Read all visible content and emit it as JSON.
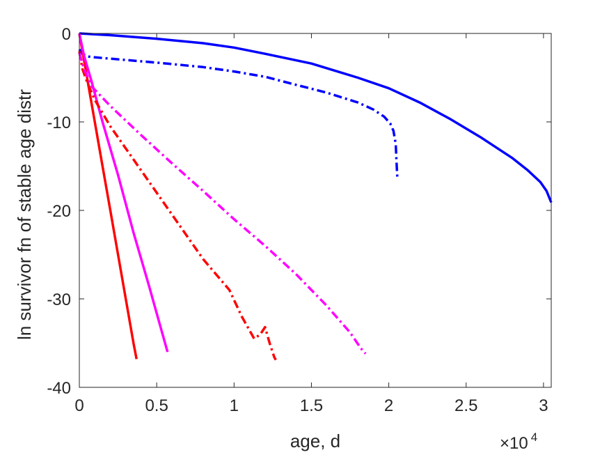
{
  "chart_data": {
    "type": "line",
    "title": "",
    "xlabel": "age, d",
    "ylabel": "ln survivor fn of stable age distr",
    "xlim": [
      0,
      30500
    ],
    "ylim": [
      -40,
      0
    ],
    "x_ticks": [
      0,
      5000,
      10000,
      15000,
      20000,
      25000,
      30000
    ],
    "x_tick_labels": [
      "0",
      "0.5",
      "1",
      "1.5",
      "2",
      "2.5",
      "3"
    ],
    "x_exponent_base": "×10",
    "x_exponent_power": "4",
    "y_ticks": [
      0,
      -10,
      -20,
      -30,
      -40
    ],
    "y_tick_labels": [
      "0",
      "-10",
      "-20",
      "-30",
      "-40"
    ],
    "grid": false,
    "box": true,
    "series": [
      {
        "color": "#0000ff",
        "style": "solid",
        "x": [
          0,
          2000,
          5000,
          8000,
          10000,
          12000,
          15000,
          18000,
          20000,
          22000,
          24000,
          26000,
          28000,
          29000,
          29800,
          30200,
          30500
        ],
        "y": [
          0,
          -0.2,
          -0.6,
          -1.1,
          -1.6,
          -2.3,
          -3.4,
          -5.0,
          -6.2,
          -7.8,
          -9.7,
          -11.8,
          -14.1,
          -15.5,
          -16.8,
          -17.8,
          -19.1
        ]
      },
      {
        "color": "#0000ff",
        "style": "dashdot",
        "x": [
          0,
          200,
          500,
          1000,
          3000,
          5000,
          8000,
          10000,
          12000,
          14000,
          16000,
          18000,
          19000,
          19700,
          20100,
          20300,
          20450,
          20500,
          20550
        ],
        "y": [
          -1.8,
          -2.3,
          -2.6,
          -2.7,
          -3.0,
          -3.3,
          -3.8,
          -4.3,
          -4.9,
          -5.8,
          -6.7,
          -7.8,
          -8.6,
          -9.4,
          -10.2,
          -11.0,
          -12.5,
          -14.5,
          -16.2
        ]
      },
      {
        "color": "#ff0000",
        "style": "solid",
        "x": [
          0,
          300,
          600,
          1000,
          1500,
          2000,
          2500,
          3000,
          3500,
          3700
        ],
        "y": [
          0,
          -3.0,
          -6.0,
          -10.0,
          -15.0,
          -20.0,
          -25.0,
          -30.0,
          -35.0,
          -36.8
        ]
      },
      {
        "color": "#ff00ff",
        "style": "solid",
        "x": [
          0,
          300,
          800,
          1500,
          2500,
          3500,
          4500,
          5700
        ],
        "y": [
          0,
          -2.5,
          -5.5,
          -10.0,
          -16.0,
          -22.5,
          -28.5,
          -36.0
        ]
      },
      {
        "color": "#ff0000",
        "style": "dashdot",
        "x": [
          0,
          200,
          500,
          1000,
          2000,
          4000,
          6000,
          8000,
          9700,
          10500,
          11300,
          11700,
          12000,
          12300,
          12600,
          12700
        ],
        "y": [
          -2.0,
          -4.0,
          -5.5,
          -7.5,
          -10.5,
          -15.5,
          -20.5,
          -25.5,
          -29.0,
          -32.0,
          -34.5,
          -34.0,
          -33.2,
          -35.0,
          -36.6,
          -36.9
        ]
      },
      {
        "color": "#ff00ff",
        "style": "dashdot",
        "x": [
          0,
          300,
          800,
          2000,
          4000,
          6000,
          8000,
          10000,
          12000,
          14000,
          16000,
          17500,
          18200,
          18500
        ],
        "y": [
          -2.2,
          -4.0,
          -6.0,
          -8.2,
          -11.5,
          -14.7,
          -17.8,
          -21.0,
          -24.0,
          -27.2,
          -30.8,
          -33.8,
          -35.6,
          -36.2
        ]
      }
    ]
  }
}
